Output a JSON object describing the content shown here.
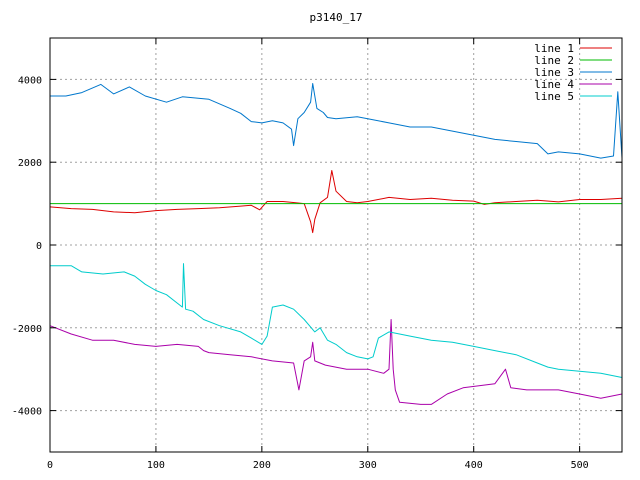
{
  "chart_data": {
    "type": "line",
    "title": "p3140_17",
    "xlabel": "",
    "ylabel": "",
    "xlim": [
      0,
      540
    ],
    "ylim": [
      -5000,
      5000
    ],
    "grid": true,
    "legend_position": "top-right",
    "x_ticks": [
      0,
      100,
      200,
      300,
      400,
      500
    ],
    "y_ticks": [
      -4000,
      -2000,
      0,
      2000,
      4000
    ],
    "series": [
      {
        "name": "line 1",
        "color": "#dd0000",
        "points": [
          [
            0,
            920
          ],
          [
            20,
            880
          ],
          [
            40,
            860
          ],
          [
            60,
            800
          ],
          [
            80,
            780
          ],
          [
            100,
            830
          ],
          [
            120,
            860
          ],
          [
            140,
            880
          ],
          [
            160,
            900
          ],
          [
            180,
            940
          ],
          [
            190,
            960
          ],
          [
            198,
            850
          ],
          [
            205,
            1050
          ],
          [
            220,
            1050
          ],
          [
            232,
            1020
          ],
          [
            240,
            1000
          ],
          [
            246,
            560
          ],
          [
            248,
            300
          ],
          [
            250,
            620
          ],
          [
            255,
            1020
          ],
          [
            262,
            1150
          ],
          [
            266,
            1800
          ],
          [
            270,
            1300
          ],
          [
            280,
            1050
          ],
          [
            290,
            1020
          ],
          [
            300,
            1050
          ],
          [
            320,
            1150
          ],
          [
            340,
            1100
          ],
          [
            360,
            1130
          ],
          [
            380,
            1080
          ],
          [
            400,
            1060
          ],
          [
            410,
            980
          ],
          [
            420,
            1020
          ],
          [
            440,
            1050
          ],
          [
            460,
            1080
          ],
          [
            480,
            1040
          ],
          [
            500,
            1100
          ],
          [
            520,
            1100
          ],
          [
            540,
            1130
          ]
        ]
      },
      {
        "name": "line 2",
        "color": "#00bb00",
        "points": [
          [
            0,
            1000
          ],
          [
            540,
            1000
          ]
        ]
      },
      {
        "name": "line 3",
        "color": "#0077cc",
        "points": [
          [
            0,
            3600
          ],
          [
            15,
            3600
          ],
          [
            30,
            3680
          ],
          [
            48,
            3880
          ],
          [
            60,
            3650
          ],
          [
            75,
            3820
          ],
          [
            90,
            3600
          ],
          [
            110,
            3450
          ],
          [
            125,
            3580
          ],
          [
            150,
            3520
          ],
          [
            170,
            3300
          ],
          [
            180,
            3180
          ],
          [
            190,
            2980
          ],
          [
            200,
            2950
          ],
          [
            210,
            3000
          ],
          [
            220,
            2950
          ],
          [
            228,
            2800
          ],
          [
            230,
            2400
          ],
          [
            234,
            3050
          ],
          [
            240,
            3200
          ],
          [
            246,
            3450
          ],
          [
            248,
            3900
          ],
          [
            252,
            3300
          ],
          [
            258,
            3200
          ],
          [
            262,
            3080
          ],
          [
            270,
            3050
          ],
          [
            290,
            3100
          ],
          [
            300,
            3050
          ],
          [
            320,
            2950
          ],
          [
            340,
            2850
          ],
          [
            360,
            2850
          ],
          [
            380,
            2750
          ],
          [
            400,
            2650
          ],
          [
            420,
            2550
          ],
          [
            440,
            2500
          ],
          [
            460,
            2450
          ],
          [
            470,
            2200
          ],
          [
            480,
            2250
          ],
          [
            500,
            2200
          ],
          [
            520,
            2100
          ],
          [
            532,
            2150
          ],
          [
            536,
            3700
          ],
          [
            540,
            2100
          ]
        ]
      },
      {
        "name": "line 4",
        "color": "#aa00aa",
        "points": [
          [
            0,
            -1950
          ],
          [
            20,
            -2150
          ],
          [
            40,
            -2300
          ],
          [
            60,
            -2300
          ],
          [
            80,
            -2400
          ],
          [
            100,
            -2450
          ],
          [
            120,
            -2400
          ],
          [
            140,
            -2450
          ],
          [
            145,
            -2550
          ],
          [
            150,
            -2600
          ],
          [
            170,
            -2650
          ],
          [
            190,
            -2700
          ],
          [
            210,
            -2800
          ],
          [
            230,
            -2850
          ],
          [
            235,
            -3500
          ],
          [
            240,
            -2800
          ],
          [
            246,
            -2700
          ],
          [
            248,
            -2350
          ],
          [
            250,
            -2800
          ],
          [
            260,
            -2900
          ],
          [
            280,
            -3000
          ],
          [
            300,
            -3000
          ],
          [
            315,
            -3100
          ],
          [
            320,
            -3000
          ],
          [
            322,
            -1800
          ],
          [
            324,
            -3000
          ],
          [
            326,
            -3500
          ],
          [
            330,
            -3800
          ],
          [
            350,
            -3850
          ],
          [
            360,
            -3850
          ],
          [
            375,
            -3600
          ],
          [
            390,
            -3450
          ],
          [
            405,
            -3400
          ],
          [
            420,
            -3350
          ],
          [
            430,
            -3000
          ],
          [
            435,
            -3450
          ],
          [
            450,
            -3500
          ],
          [
            480,
            -3500
          ],
          [
            500,
            -3600
          ],
          [
            520,
            -3700
          ],
          [
            540,
            -3600
          ]
        ]
      },
      {
        "name": "line 5",
        "color": "#00cccc",
        "points": [
          [
            0,
            -500
          ],
          [
            20,
            -500
          ],
          [
            30,
            -650
          ],
          [
            50,
            -700
          ],
          [
            70,
            -650
          ],
          [
            80,
            -750
          ],
          [
            90,
            -950
          ],
          [
            100,
            -1100
          ],
          [
            110,
            -1200
          ],
          [
            120,
            -1400
          ],
          [
            125,
            -1500
          ],
          [
            126,
            -450
          ],
          [
            128,
            -1550
          ],
          [
            135,
            -1600
          ],
          [
            145,
            -1800
          ],
          [
            160,
            -1950
          ],
          [
            180,
            -2100
          ],
          [
            190,
            -2250
          ],
          [
            200,
            -2400
          ],
          [
            205,
            -2200
          ],
          [
            210,
            -1500
          ],
          [
            220,
            -1450
          ],
          [
            230,
            -1550
          ],
          [
            240,
            -1800
          ],
          [
            250,
            -2100
          ],
          [
            255,
            -2000
          ],
          [
            262,
            -2300
          ],
          [
            270,
            -2400
          ],
          [
            280,
            -2600
          ],
          [
            290,
            -2700
          ],
          [
            300,
            -2750
          ],
          [
            305,
            -2700
          ],
          [
            310,
            -2250
          ],
          [
            320,
            -2100
          ],
          [
            340,
            -2200
          ],
          [
            360,
            -2300
          ],
          [
            380,
            -2350
          ],
          [
            400,
            -2450
          ],
          [
            420,
            -2550
          ],
          [
            440,
            -2650
          ],
          [
            460,
            -2850
          ],
          [
            470,
            -2950
          ],
          [
            480,
            -3000
          ],
          [
            500,
            -3050
          ],
          [
            520,
            -3100
          ],
          [
            540,
            -3200
          ]
        ]
      }
    ]
  }
}
